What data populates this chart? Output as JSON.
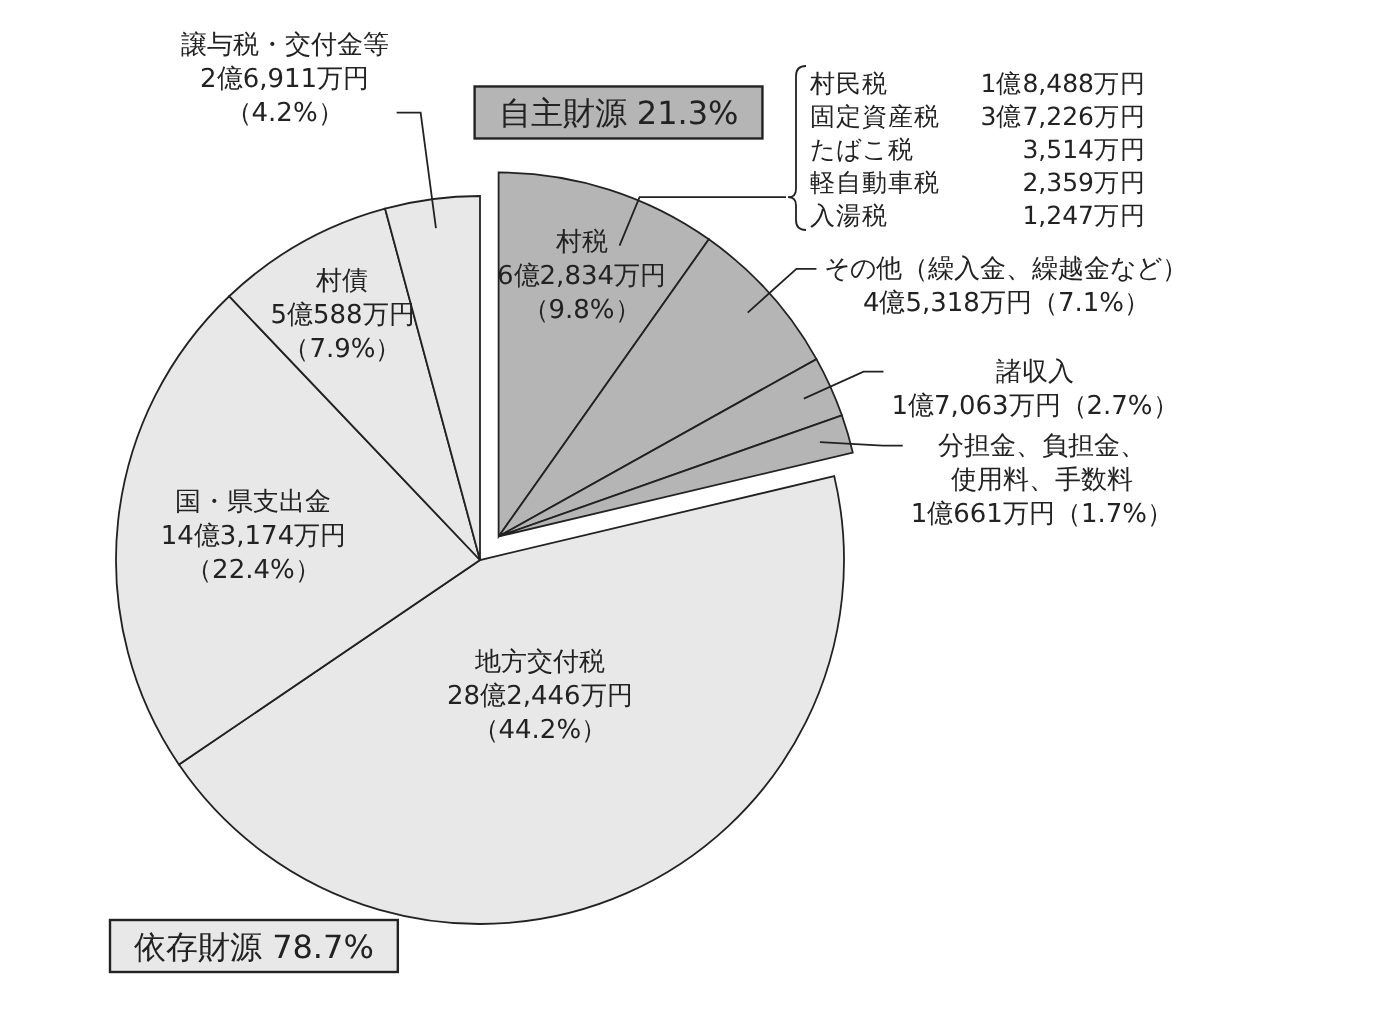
{
  "chart_data": {
    "type": "pie",
    "categories": [
      "村税",
      "その他（繰入金、繰越金など）",
      "諸収入",
      "分担金、負担金、使用料、手数料",
      "地方交付税",
      "国・県支出金",
      "村債",
      "譲与税・交付金等"
    ],
    "values": [
      9.8,
      7.1,
      2.7,
      1.7,
      44.2,
      22.4,
      7.9,
      4.2
    ],
    "value_labels": [
      "6億2,834万円（9.8%）",
      "4億5,318万円（7.1%）",
      "1億7,063万円（2.7%）",
      "1億661万円（1.7%）",
      "28億2,446万円（44.2%）",
      "14億3,174万円（22.4%）",
      "5億588万円（7.9%）",
      "2億6,911万円（4.2%）"
    ],
    "colors": [
      "#b5b5b5",
      "#b5b5b5",
      "#b5b5b5",
      "#b5b5b5",
      "#e8e8e8",
      "#e8e8e8",
      "#e8e8e8",
      "#e8e8e8"
    ],
    "annotations": [
      "自主財源 21.3%",
      "依存財源 78.7%",
      "村民税 1億8,488万円",
      "固定資産税 3億7,226万円",
      "たばこ税 3,514万円",
      "軽自動車税 2,359万円",
      "入湯税 1,247万円"
    ]
  }
}
